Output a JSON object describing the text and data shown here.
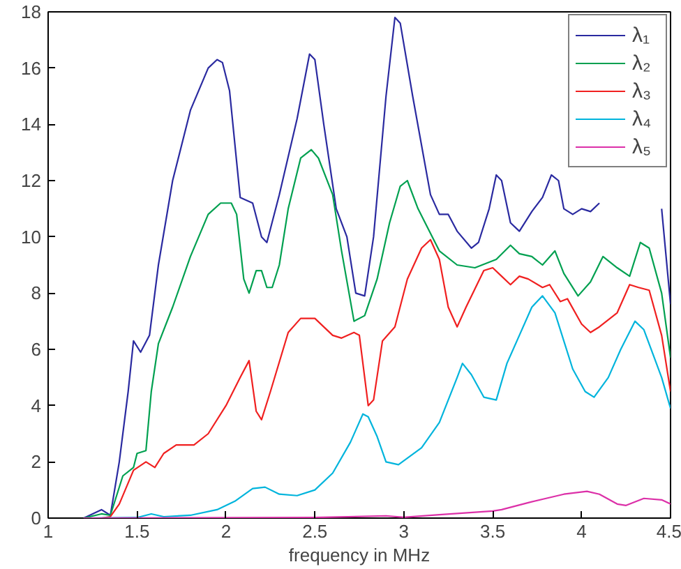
{
  "chart_data": {
    "type": "line",
    "xlabel": "frequency in MHz",
    "xlim": [
      1,
      4.5
    ],
    "ylim": [
      0,
      18
    ],
    "xticks": [
      1,
      1.5,
      2,
      2.5,
      3,
      3.5,
      4,
      4.5
    ],
    "yticks": [
      0,
      2,
      4,
      6,
      8,
      10,
      12,
      14,
      16,
      18
    ],
    "grid": false,
    "legend": "top right",
    "marker": "none",
    "line_style": "solid",
    "series": [
      {
        "name": "λ₁",
        "color": "#2a2aa0",
        "x": [
          1.2,
          1.3,
          1.35,
          1.4,
          1.45,
          1.48,
          1.52,
          1.57,
          1.62,
          1.7,
          1.8,
          1.9,
          1.95,
          1.98,
          2.02,
          2.08,
          2.15,
          2.2,
          2.23,
          2.3,
          2.4,
          2.47,
          2.5,
          2.55,
          2.62,
          2.68,
          2.73,
          2.78,
          2.83,
          2.9,
          2.95,
          2.98,
          3.05,
          3.15,
          3.2,
          3.25,
          3.3,
          3.38,
          3.42,
          3.48,
          3.52,
          3.55,
          3.6,
          3.65,
          3.72,
          3.78,
          3.83,
          3.87,
          3.9,
          3.95,
          4.0,
          4.05,
          4.1,
          4.2,
          4.3,
          4.45,
          4.5
        ],
        "values": [
          0,
          0.3,
          0.1,
          2,
          4.5,
          6.3,
          5.9,
          6.5,
          9,
          12,
          14.5,
          16,
          16.3,
          16.2,
          15.2,
          11.4,
          11.2,
          10,
          9.8,
          11.5,
          14.2,
          16.5,
          16.3,
          14,
          11,
          10,
          8,
          7.9,
          10,
          15,
          17.8,
          17.6,
          15,
          11.5,
          10.8,
          10.8,
          10.2,
          9.6,
          9.8,
          11,
          12.2,
          12,
          10.5,
          10.2,
          10.9,
          11.4,
          12.2,
          12,
          11,
          10.8,
          11,
          10.9,
          11.2,
          null,
          null,
          11,
          7.6
        ]
      },
      {
        "name": "λ₂",
        "color": "#00a050",
        "x": [
          1.2,
          1.3,
          1.35,
          1.42,
          1.48,
          1.5,
          1.55,
          1.58,
          1.62,
          1.7,
          1.8,
          1.9,
          1.97,
          2.03,
          2.06,
          2.1,
          2.13,
          2.17,
          2.2,
          2.23,
          2.26,
          2.3,
          2.35,
          2.42,
          2.48,
          2.52,
          2.6,
          2.65,
          2.72,
          2.78,
          2.85,
          2.92,
          2.98,
          3.02,
          3.08,
          3.12,
          3.2,
          3.3,
          3.4,
          3.52,
          3.6,
          3.65,
          3.72,
          3.78,
          3.85,
          3.9,
          3.98,
          4.05,
          4.12,
          4.2,
          4.27,
          4.33,
          4.38,
          4.45,
          4.5
        ],
        "values": [
          0,
          0.15,
          0.1,
          1.5,
          1.8,
          2.3,
          2.4,
          4.5,
          6.2,
          7.5,
          9.3,
          10.8,
          11.2,
          11.2,
          10.8,
          8.5,
          8,
          8.8,
          8.8,
          8.2,
          8.2,
          9,
          11,
          12.8,
          13.1,
          12.8,
          11.5,
          9.5,
          7,
          7.2,
          8.5,
          10.5,
          11.8,
          12,
          11,
          10.5,
          9.5,
          9,
          8.9,
          9.2,
          9.7,
          9.4,
          9.3,
          9,
          9.5,
          8.7,
          7.9,
          8.4,
          9.3,
          8.9,
          8.6,
          9.8,
          9.6,
          8,
          5.7
        ]
      },
      {
        "name": "λ₃",
        "color": "#f02020",
        "x": [
          1.3,
          1.35,
          1.4,
          1.48,
          1.55,
          1.6,
          1.65,
          1.72,
          1.82,
          1.9,
          2.0,
          2.08,
          2.13,
          2.17,
          2.2,
          2.25,
          2.35,
          2.42,
          2.5,
          2.6,
          2.65,
          2.72,
          2.75,
          2.8,
          2.83,
          2.88,
          2.95,
          3.02,
          3.1,
          3.15,
          3.2,
          3.25,
          3.3,
          3.35,
          3.45,
          3.5,
          3.55,
          3.6,
          3.65,
          3.7,
          3.78,
          3.82,
          3.88,
          3.92,
          4.0,
          4.05,
          4.1,
          4.2,
          4.27,
          4.32,
          4.38,
          4.45,
          4.5
        ],
        "values": [
          0,
          0.05,
          0.5,
          1.7,
          2,
          1.8,
          2.3,
          2.6,
          2.6,
          3,
          4,
          5,
          5.6,
          3.8,
          3.5,
          4.5,
          6.6,
          7.1,
          7.1,
          6.5,
          6.4,
          6.6,
          6.5,
          4,
          4.2,
          6.3,
          6.8,
          8.5,
          9.6,
          9.9,
          9.2,
          7.5,
          6.8,
          7.5,
          8.8,
          8.9,
          8.6,
          8.3,
          8.6,
          8.5,
          8.2,
          8.3,
          7.7,
          7.8,
          6.9,
          6.6,
          6.8,
          7.3,
          8.3,
          8.2,
          8.1,
          6.5,
          4.5
        ]
      },
      {
        "name": "λ₄",
        "color": "#00b4dc",
        "x": [
          1.2,
          1.5,
          1.58,
          1.65,
          1.8,
          1.95,
          2.05,
          2.15,
          2.22,
          2.3,
          2.4,
          2.5,
          2.6,
          2.7,
          2.77,
          2.8,
          2.85,
          2.9,
          2.97,
          3.1,
          3.2,
          3.3,
          3.33,
          3.38,
          3.45,
          3.52,
          3.58,
          3.65,
          3.72,
          3.78,
          3.85,
          3.95,
          4.02,
          4.07,
          4.15,
          4.22,
          4.3,
          4.35,
          4.45,
          4.5
        ],
        "values": [
          0,
          0.02,
          0.15,
          0.05,
          0.1,
          0.3,
          0.6,
          1.05,
          1.1,
          0.85,
          0.8,
          1,
          1.6,
          2.7,
          3.7,
          3.6,
          2.9,
          2,
          1.9,
          2.5,
          3.4,
          5,
          5.5,
          5.1,
          4.3,
          4.2,
          5.5,
          6.5,
          7.5,
          7.9,
          7.3,
          5.3,
          4.5,
          4.3,
          5,
          6,
          7,
          6.7,
          5,
          3.9
        ]
      },
      {
        "name": "λ₅",
        "color": "#dc30a8",
        "x": [
          1.2,
          2.5,
          2.9,
          3.0,
          3.2,
          3.5,
          3.55,
          3.7,
          3.8,
          3.9,
          4.03,
          4.1,
          4.2,
          4.25,
          4.35,
          4.45,
          4.5
        ],
        "values": [
          0,
          0.02,
          0.08,
          0.03,
          0.12,
          0.25,
          0.3,
          0.55,
          0.7,
          0.85,
          0.95,
          0.85,
          0.5,
          0.45,
          0.7,
          0.65,
          0.5
        ]
      }
    ]
  }
}
